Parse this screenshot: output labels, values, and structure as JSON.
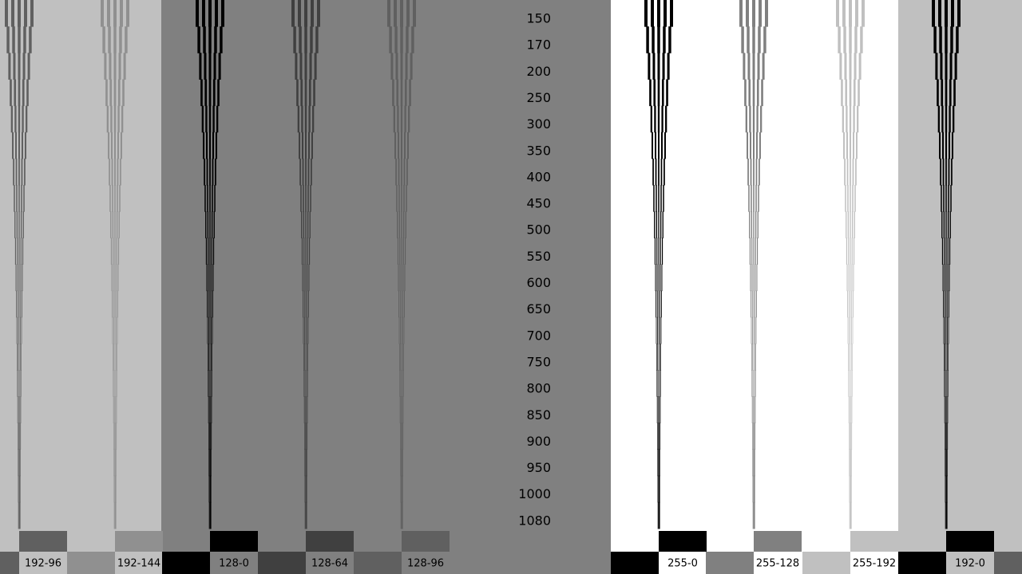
{
  "resolutions": [
    "150",
    "170",
    "200",
    "250",
    "300",
    "350",
    "400",
    "450",
    "500",
    "550",
    "600",
    "650",
    "700",
    "750",
    "800",
    "850",
    "900",
    "950",
    "1000",
    "1080"
  ],
  "labels": [
    "192-96",
    "192-144",
    "128-0",
    "128-64",
    "128-96",
    "255-0",
    "255-128",
    "255-192",
    "192-0"
  ]
}
